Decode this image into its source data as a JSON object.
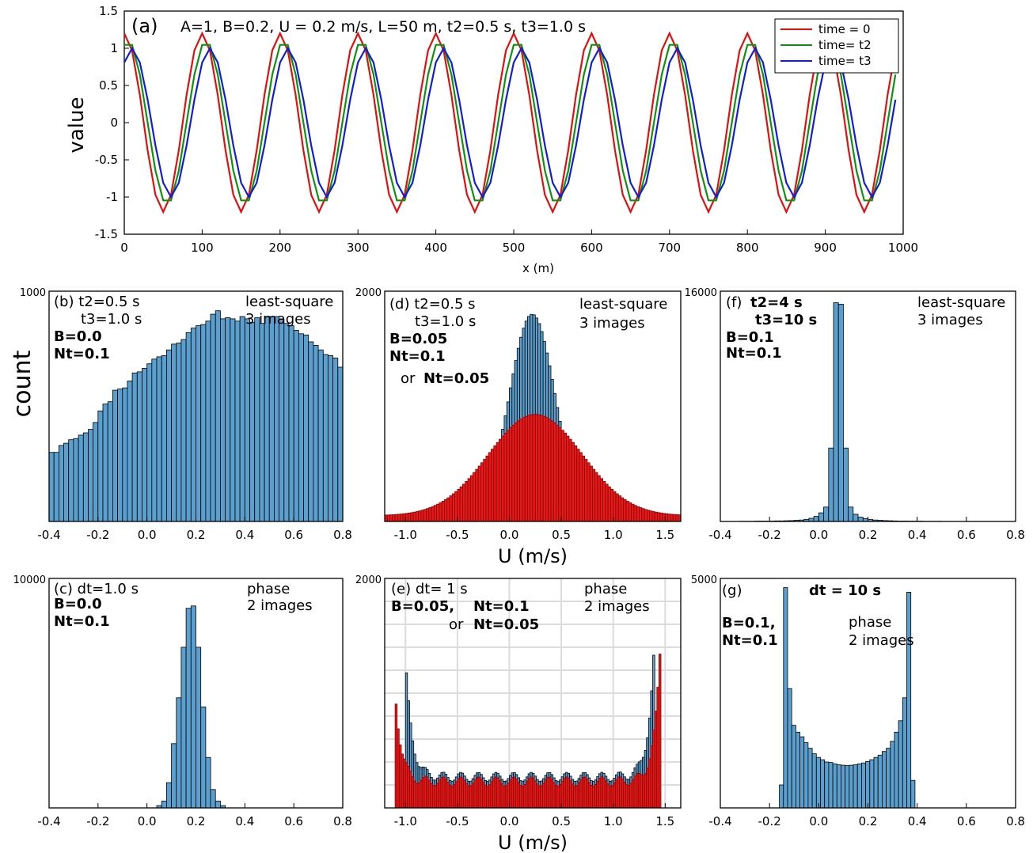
{
  "chart_data": [
    {
      "id": "a",
      "type": "line",
      "panel_label": "(a)",
      "title": "A=1, B=0.2, U = 0.2 m/s, L=50 m, t2=0.5 s, t3=1.0 s",
      "xlabel": "x (m)",
      "ylabel": "value",
      "xlim": [
        0,
        1000
      ],
      "ylim": [
        -1.5,
        1.5
      ],
      "xticks": [
        "0",
        "100",
        "200",
        "300",
        "400",
        "500",
        "600",
        "700",
        "800",
        "900",
        "1000"
      ],
      "yticks": [
        "-1.5",
        "-1",
        "-0.5",
        "0",
        "0.5",
        "1",
        "1.5"
      ],
      "legend_position": "top-right",
      "wave": {
        "wavelength_m": 100,
        "x_step_m": 10,
        "x_max": 990
      },
      "series": [
        {
          "name": "time = 0",
          "color": "#e01010",
          "amplitude": 1.2,
          "shift_m": 0
        },
        {
          "name": "time= t2",
          "color": "#109010",
          "amplitude": 1.1,
          "shift_m": 5
        },
        {
          "name": "time= t3",
          "color": "#1020d0",
          "amplitude": 1.0,
          "shift_m": 10
        }
      ]
    },
    {
      "id": "b",
      "type": "bar",
      "annotations": [
        {
          "text": "(b) t2=0.5 s"
        },
        {
          "text": "t3=1.0 s"
        },
        {
          "text": "B=0.0",
          "bold": true
        },
        {
          "text": "Nt=0.1",
          "bold": true
        },
        {
          "text": "least-square"
        },
        {
          "text": "3 images"
        }
      ],
      "ylabel": "count",
      "xlim": [
        -0.4,
        0.8
      ],
      "ylim": [
        0,
        1000
      ],
      "ytop_label": "1000",
      "xticks": [
        "-0.4",
        "-0.2",
        "0.0",
        "0.2",
        "0.4",
        "0.6",
        "0.8"
      ],
      "bin_start": -0.4,
      "bin_width": 0.02,
      "series": [
        {
          "color": "#5b9fcf",
          "values": [
            300,
            300,
            330,
            340,
            355,
            360,
            375,
            385,
            400,
            430,
            480,
            510,
            520,
            570,
            575,
            580,
            610,
            645,
            650,
            665,
            685,
            705,
            715,
            720,
            745,
            770,
            775,
            790,
            820,
            840,
            850,
            855,
            870,
            900,
            915,
            880,
            885,
            880,
            870,
            890,
            880,
            865,
            885,
            860,
            890,
            890,
            890,
            880,
            860,
            850,
            830,
            815,
            810,
            780,
            765,
            745,
            725,
            720,
            710,
            670,
            650,
            640,
            600,
            600,
            575,
            555,
            535,
            490,
            480,
            480,
            470,
            465,
            460,
            420,
            400,
            350,
            355,
            315,
            300,
            310,
            310,
            295
          ]
        }
      ]
    },
    {
      "id": "c",
      "type": "bar",
      "annotations": [
        {
          "text": "(c)  dt=1.0 s"
        },
        {
          "text": "B=0.0",
          "bold": true
        },
        {
          "text": "Nt=0.1",
          "bold": true
        },
        {
          "text": "phase"
        },
        {
          "text": "2 images"
        }
      ],
      "xlim": [
        -0.4,
        0.8
      ],
      "ylim": [
        0,
        10000
      ],
      "ytop_label": "10000",
      "xticks": [
        "-0.4",
        "-0.2",
        "0.0",
        "0.2",
        "0.4",
        "0.6",
        "0.8"
      ],
      "bin_start": 0.04,
      "bin_width": 0.02,
      "series": [
        {
          "color": "#5b9fcf",
          "values": [
            100,
            300,
            1100,
            2800,
            4800,
            7000,
            8700,
            8800,
            7000,
            4400,
            2200,
            800,
            300,
            100
          ]
        }
      ]
    },
    {
      "id": "d",
      "type": "bar",
      "annotations": [
        {
          "text": "(d) t2=0.5 s"
        },
        {
          "text": "t3=1.0 s"
        },
        {
          "text": "B=0.05",
          "bold": true
        },
        {
          "text": "Nt=0.1",
          "bold": true,
          "color": "#ff0000"
        },
        {
          "text": "or"
        },
        {
          "text": "Nt=0.05",
          "bold": true,
          "color": "#5b9fcf"
        },
        {
          "text": "least-square"
        },
        {
          "text": "3 images"
        }
      ],
      "xlabel": "U (m/s)",
      "xlim": [
        -1.2,
        1.65
      ],
      "ylim": [
        0,
        2000
      ],
      "ytop_label": "2000",
      "xticks": [
        "-1.0",
        "-0.5",
        "0.0",
        "0.5",
        "1.0",
        "1.5"
      ],
      "series": [
        {
          "name": "Nt=0.05",
          "color": "#5b9fcf",
          "center": 0.22,
          "sigma": 0.22,
          "peak": 1780,
          "tail": 20
        },
        {
          "name": "Nt=0.1",
          "color": "#e41a1a",
          "center": 0.25,
          "sigma": 0.45,
          "peak": 880,
          "tail": 50
        }
      ]
    },
    {
      "id": "e",
      "type": "bar",
      "annotations": [
        {
          "text": "(e) dt= 1 s"
        },
        {
          "text": "B=0.05,",
          "bold": true
        },
        {
          "text": "Nt=0.1",
          "bold": true,
          "color": "#ff0000"
        },
        {
          "text": "or"
        },
        {
          "text": "Nt=0.05",
          "bold": true,
          "color": "#5b9fcf"
        },
        {
          "text": "phase"
        },
        {
          "text": "2 images"
        }
      ],
      "xlabel": "U (m/s)",
      "xlim": [
        -1.2,
        1.65
      ],
      "ylim": [
        0,
        2000
      ],
      "ytop_label": "2000",
      "xticks": [
        "-1.0",
        "-0.5",
        "0.0",
        "0.5",
        "1.0",
        "1.5"
      ],
      "grid": true,
      "series": [
        {
          "name": "Nt=0.05",
          "color": "#5b9fcf",
          "range": [
            -1.0,
            1.4
          ],
          "left_peak": 1300,
          "right_peak": 1480,
          "floor": 270
        },
        {
          "name": "Nt=0.1",
          "color": "#e41a1a",
          "range": [
            -1.1,
            1.45
          ],
          "left_peak": 1050,
          "right_peak": 1350,
          "floor": 230
        }
      ]
    },
    {
      "id": "f",
      "type": "bar",
      "annotations": [
        {
          "text": "(f)"
        },
        {
          "text": "t2=4 s",
          "bold": true
        },
        {
          "text": "t3=10 s",
          "bold": true
        },
        {
          "text": "B=0.1",
          "bold": true
        },
        {
          "text": "Nt=0.1",
          "bold": true
        },
        {
          "text": "least-square"
        },
        {
          "text": "3 images"
        }
      ],
      "xlim": [
        -0.4,
        0.8
      ],
      "ylim": [
        0,
        16000
      ],
      "ytop_label": "16000",
      "xticks": [
        "-0.4",
        "-0.2",
        "0.0",
        "0.2",
        "0.4",
        "0.6",
        "0.8"
      ],
      "bin_start": -0.4,
      "bin_width": 0.02,
      "series": [
        {
          "color": "#5b9fcf",
          "values": [
            0,
            0,
            0,
            0,
            10,
            10,
            10,
            20,
            20,
            20,
            30,
            40,
            40,
            50,
            60,
            80,
            100,
            150,
            220,
            350,
            600,
            1000,
            5100,
            15200,
            15100,
            5100,
            1000,
            500,
            300,
            200,
            130,
            100,
            80,
            60,
            50,
            40,
            30,
            30,
            20,
            20,
            20,
            10,
            10,
            10,
            10,
            0,
            0,
            0,
            0,
            0,
            0,
            0,
            0,
            0,
            0,
            0,
            0,
            0,
            0,
            0
          ]
        }
      ]
    },
    {
      "id": "g",
      "type": "bar",
      "annotations": [
        {
          "text": "(g)"
        },
        {
          "text": "dt = 10 s",
          "bold": true
        },
        {
          "text": "B=0.1,",
          "bold": true
        },
        {
          "text": "Nt=0.1",
          "bold": true
        },
        {
          "text": "phase"
        },
        {
          "text": "2 images"
        }
      ],
      "xlim": [
        -0.4,
        0.8
      ],
      "ylim": [
        0,
        5000
      ],
      "ytop_label": "5000",
      "xticks": [
        "-0.4",
        "-0.2",
        "0.0",
        "0.2",
        "0.4",
        "0.6",
        "0.8"
      ],
      "bin_start": -0.16,
      "bin_width": 0.0167,
      "series": [
        {
          "color": "#5b9fcf",
          "values": [
            500,
            4800,
            2600,
            1800,
            1650,
            1550,
            1420,
            1300,
            1180,
            1100,
            1050,
            1000,
            990,
            960,
            940,
            930,
            920,
            930,
            940,
            960,
            980,
            1010,
            1050,
            1100,
            1150,
            1230,
            1300,
            1450,
            1650,
            1900,
            2400,
            4700,
            600
          ]
        }
      ]
    }
  ]
}
